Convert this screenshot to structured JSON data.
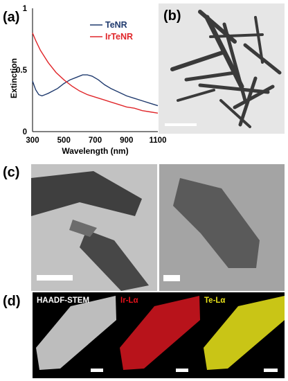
{
  "panels": {
    "a": "(a)",
    "b": "(b)",
    "c": "(c)",
    "d": "(d)"
  },
  "eds": {
    "haadf": "HAADF-STEM",
    "ir": "Ir-Lα",
    "te": "Te-Lα"
  },
  "colors": {
    "tenr": "#1f3a6e",
    "irtenr": "#e0262a",
    "ir_map": "#e5121b",
    "te_map": "#e8e21a"
  },
  "chart_data": {
    "type": "line",
    "xlabel": "Wavelength (nm)",
    "ylabel": "Extinction",
    "xlim": [
      300,
      1100
    ],
    "ylim": [
      0,
      1
    ],
    "xticks": [
      "300",
      "500",
      "700",
      "900",
      "1100"
    ],
    "yticks": [
      "0",
      "0.5",
      "1"
    ],
    "grid": false,
    "legend_position": "top-right",
    "series": [
      {
        "name": "TeNR",
        "x": [
          300,
          320,
          340,
          360,
          380,
          400,
          430,
          460,
          500,
          540,
          580,
          620,
          650,
          680,
          720,
          760,
          800,
          850,
          900,
          950,
          1000,
          1050,
          1100
        ],
        "y": [
          0.41,
          0.34,
          0.3,
          0.29,
          0.3,
          0.31,
          0.33,
          0.35,
          0.39,
          0.42,
          0.44,
          0.46,
          0.46,
          0.45,
          0.42,
          0.38,
          0.35,
          0.32,
          0.29,
          0.27,
          0.25,
          0.23,
          0.21
        ]
      },
      {
        "name": "IrTeNR",
        "x": [
          300,
          320,
          350,
          400,
          450,
          500,
          550,
          600,
          650,
          700,
          750,
          800,
          850,
          900,
          950,
          1000,
          1050,
          1100
        ],
        "y": [
          0.8,
          0.74,
          0.66,
          0.56,
          0.48,
          0.42,
          0.37,
          0.33,
          0.3,
          0.28,
          0.26,
          0.24,
          0.22,
          0.2,
          0.19,
          0.17,
          0.16,
          0.15
        ]
      }
    ]
  }
}
